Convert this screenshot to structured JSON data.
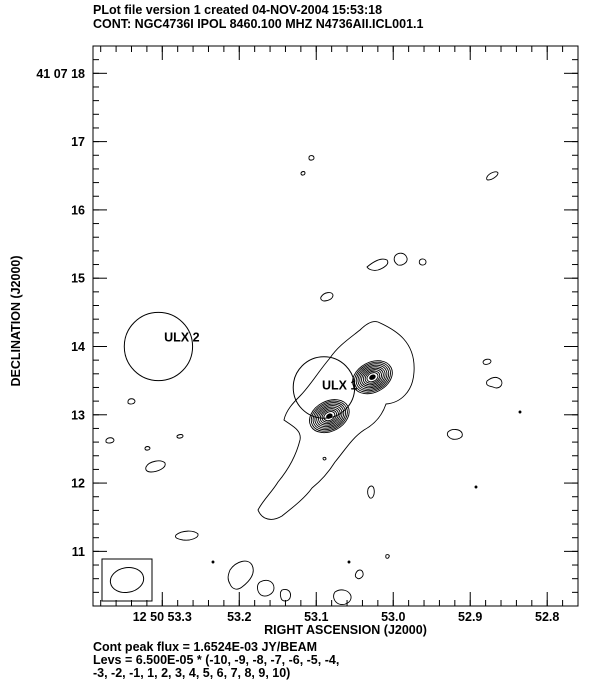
{
  "header": {
    "line1": "PLot file version 1  created 04-NOV-2004 15:53:18",
    "line2": "CONT: NGC4736I  IPOL  8460.100 MHZ  N4736AII.ICL001.1"
  },
  "footer": {
    "peak": "Cont peak flux =  1.6524E-03 JY/BEAM",
    "levs1": "Levs = 6.500E-05 * (-10, -9, -8, -7, -6, -5, -4,",
    "levs2": "-3, -2, -1, 1, 2, 3, 4, 5, 6, 7, 8, 9, 10)"
  },
  "chart_data": {
    "type": "contour",
    "xlabel": "RIGHT ASCENSION (J2000)",
    "ylabel": "DECLINATION (J2000)",
    "x_ticks": [
      {
        "value": 53.3,
        "label": "12 50 53.3"
      },
      {
        "value": 53.2,
        "label": "53.2"
      },
      {
        "value": 53.1,
        "label": "53.1"
      },
      {
        "value": 53.0,
        "label": "53.0"
      },
      {
        "value": 52.9,
        "label": "52.9"
      },
      {
        "value": 52.8,
        "label": "52.8"
      }
    ],
    "y_ticks": [
      {
        "value": 18,
        "label": "41 07 18"
      },
      {
        "value": 17,
        "label": "17"
      },
      {
        "value": 16,
        "label": "16"
      },
      {
        "value": 15,
        "label": "15"
      },
      {
        "value": 14,
        "label": "14"
      },
      {
        "value": 13,
        "label": "13"
      },
      {
        "value": 12,
        "label": "12"
      },
      {
        "value": 11,
        "label": "11"
      }
    ],
    "xlim": [
      53.39,
      52.76
    ],
    "ylim": [
      10.2,
      18.4
    ],
    "minor_x_step": 0.02,
    "minor_y_step": 0.2,
    "annotations": [
      {
        "label": "ULX 2",
        "ra": 53.295,
        "dec": 14.1
      },
      {
        "label": "ULX 1",
        "ra": 53.09,
        "dec": 13.4
      }
    ],
    "marker_circles": [
      {
        "ra": 53.305,
        "dec": 14.0,
        "r_arcsec": 0.5
      },
      {
        "ra": 53.09,
        "dec": 13.4,
        "r_arcsec": 0.45
      }
    ],
    "sources": [
      {
        "ra": 53.083,
        "dec": 12.98,
        "contours": 9
      },
      {
        "ra": 53.027,
        "dec": 13.55,
        "contours": 9
      }
    ],
    "beam_ellipse": {
      "major_arcsec": 0.38,
      "minor_arcsec": 0.28,
      "pa_deg": 10
    }
  }
}
